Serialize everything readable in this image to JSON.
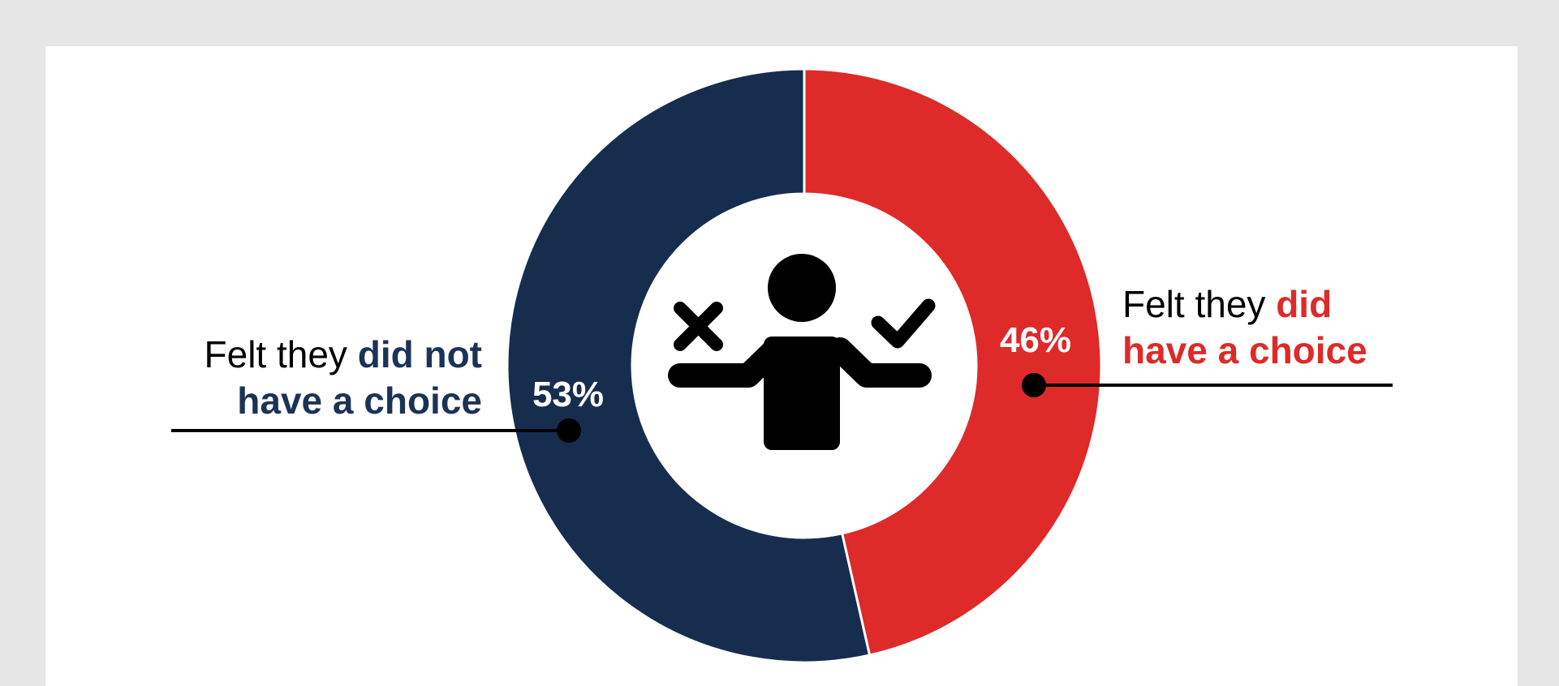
{
  "chart_data": {
    "type": "pie",
    "subtype": "donut",
    "categories": [
      "Felt they did not have a choice",
      "Felt they did have a choice"
    ],
    "values": [
      53,
      46
    ],
    "value_labels": [
      "53%",
      "46%"
    ],
    "colors": [
      "#162d4e",
      "#de2a28"
    ],
    "center_icon": "person-choice-icon",
    "center_icon_marks": [
      "cross-icon",
      "check-icon"
    ]
  },
  "callouts": {
    "no_choice": {
      "prefix": "Felt they ",
      "highlight_line1": "did not",
      "line2": "have a choice",
      "color": "#1c3358"
    },
    "choice": {
      "prefix": "Felt they ",
      "highlight_line1": "did",
      "line2": "have a choice",
      "color": "#de2a28"
    }
  },
  "colors": {
    "background": "#e6e6e6",
    "card": "#ffffff",
    "leader": "#000000"
  }
}
